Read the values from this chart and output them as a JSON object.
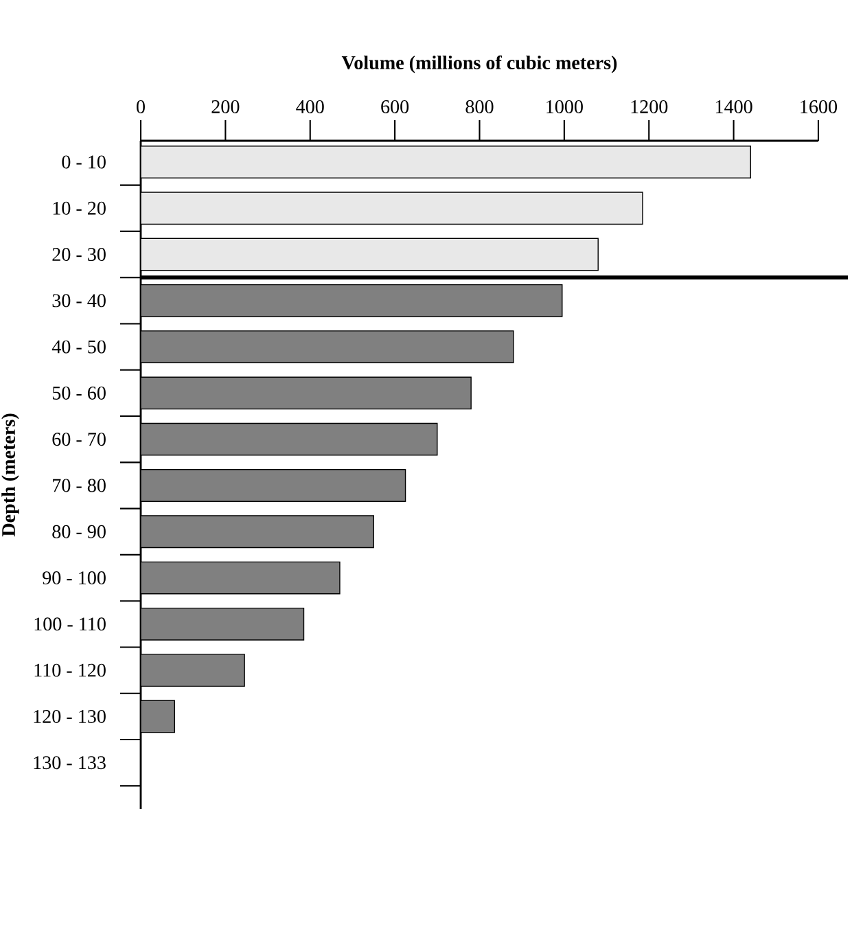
{
  "chart_data": {
    "type": "bar",
    "orientation": "horizontal",
    "xlabel": "Volume (millions of cubic meters)",
    "ylabel": "Depth (meters)",
    "categories": [
      "0 - 10",
      "10 - 20",
      "20 - 30",
      "30 - 40",
      "40 - 50",
      "50 - 60",
      "60 - 70",
      "70 - 80",
      "80 - 90",
      "90 - 100",
      "100 - 110",
      "110 - 120",
      "120 - 130",
      "130 - 133"
    ],
    "values": [
      1440,
      1185,
      1080,
      995,
      880,
      780,
      700,
      625,
      550,
      470,
      385,
      245,
      80,
      0
    ],
    "colors": [
      "#e8e8e8",
      "#e8e8e8",
      "#e8e8e8",
      "#808080",
      "#808080",
      "#808080",
      "#808080",
      "#808080",
      "#808080",
      "#808080",
      "#808080",
      "#808080",
      "#808080",
      "#808080"
    ],
    "xlim": [
      0,
      1600
    ],
    "xticks": [
      0,
      200,
      400,
      600,
      800,
      1000,
      1200,
      1400,
      1600
    ],
    "grid": false
  }
}
